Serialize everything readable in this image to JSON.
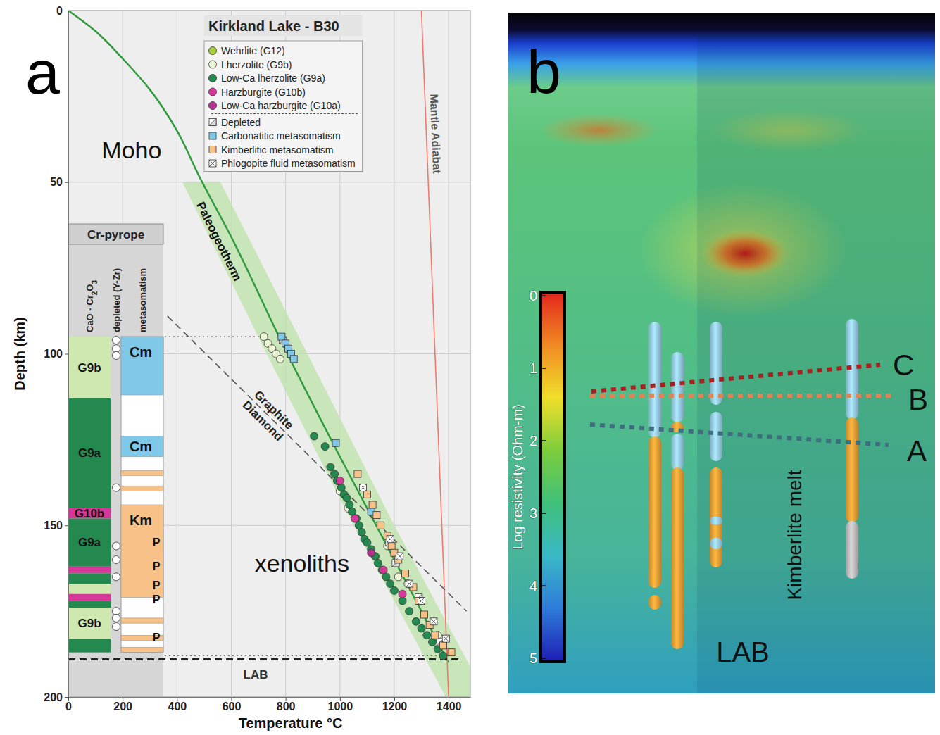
{
  "chart_data": [
    {
      "panel": "a",
      "type": "scatter",
      "title": "Kirkland Lake - B30",
      "x_label": "Temperature °C",
      "y_label": "Depth (km)",
      "xlim": [
        0,
        1480
      ],
      "ylim": [
        0,
        200
      ],
      "xticks": [
        0,
        200,
        400,
        600,
        800,
        1000,
        1200,
        1400
      ],
      "yticks": [
        0,
        50,
        100,
        150,
        200
      ],
      "grid": true,
      "legend": "upper right",
      "series": [
        {
          "name": "Wehrlite (G12)",
          "color": "#a9cc3a",
          "marker": "circle",
          "x": [],
          "values": []
        },
        {
          "name": "Lherzolite (G9b)",
          "color": "#eef6d8",
          "marker": "circle",
          "x": [
            720,
            735,
            750,
            765,
            780,
            1000,
            1030,
            1175,
            1215,
            1250,
            1360
          ],
          "values": [
            95,
            97,
            98.5,
            100,
            101.5,
            140,
            145,
            156,
            165,
            167,
            182
          ]
        },
        {
          "name": "Low-Ca lherzolite (G9a)",
          "color": "#24894f",
          "marker": "circle",
          "x": [
            905,
            945,
            965,
            980,
            990,
            1005,
            1015,
            1025,
            1035,
            1045,
            1060,
            1070,
            1080,
            1090,
            1100,
            1115,
            1130,
            1140,
            1155,
            1170,
            1185,
            1200,
            1230,
            1255,
            1280,
            1300,
            1320,
            1340,
            1360,
            1380
          ],
          "values": [
            124,
            127,
            133,
            135,
            137,
            139,
            141,
            142,
            144,
            146,
            148,
            150,
            152,
            154,
            155,
            157,
            159,
            161,
            163,
            165,
            167,
            169,
            172,
            175,
            178,
            180,
            182,
            184,
            186,
            188
          ]
        },
        {
          "name": "Harzburgite (G10b)",
          "color": "#d6399a",
          "marker": "circle",
          "x": [
            1000,
            1055,
            1160,
            1230
          ],
          "values": [
            137,
            148,
            163,
            170
          ]
        },
        {
          "name": "Low-Ca harzburgite (G10a)",
          "color": "#b23490",
          "marker": "circle",
          "x": [
            1115
          ],
          "values": [
            158
          ]
        },
        {
          "name": "Depleted",
          "color": "#ffffff",
          "marker": "half-square",
          "x": [
            790,
            1180,
            1205,
            1290,
            1370
          ],
          "values": [
            96,
            155,
            161,
            171,
            184
          ]
        },
        {
          "name": "Carbonatitic metasomatism",
          "color": "#7fc8e8",
          "marker": "square",
          "x": [
            785,
            800,
            810,
            820,
            830,
            985,
            1115
          ],
          "values": [
            95,
            97,
            98.5,
            100,
            101.5,
            126,
            146
          ]
        },
        {
          "name": "Kimberlitic metasomatism",
          "color": "#f7c187",
          "marker": "square",
          "x": [
            1065,
            1100,
            1120,
            1135,
            1150,
            1175,
            1190,
            1200,
            1215,
            1240,
            1270,
            1290,
            1310,
            1330,
            1350,
            1380,
            1410
          ],
          "values": [
            135,
            141,
            144,
            147,
            150,
            153,
            156,
            158,
            160,
            164,
            168,
            172,
            176,
            179,
            182,
            185,
            187
          ]
        },
        {
          "name": "Phlogopite fluid metasomatism",
          "color": "#ffffff",
          "marker": "cross-square",
          "x": [
            1085,
            1185,
            1220,
            1255,
            1300,
            1345,
            1390
          ],
          "values": [
            139,
            154,
            159,
            167,
            172,
            178,
            183
          ]
        }
      ],
      "lines": [
        {
          "label": "Paleogeotherm",
          "color": "#2e9a3c",
          "line_style": "solid",
          "x": [
            0,
            100,
            200,
            300,
            400,
            480,
            600,
            800,
            1000,
            1200,
            1400
          ],
          "values": [
            0,
            6,
            14,
            23,
            35,
            48,
            66,
            99,
            130,
            160,
            190
          ]
        },
        {
          "label": "Mantle Adiabat",
          "color": "#f07a6a",
          "line_style": "solid",
          "x": [
            1300,
            1400
          ],
          "values": [
            0,
            200
          ]
        },
        {
          "labels": [
            "Graphite",
            "Diamond"
          ],
          "color": "#555555",
          "line_style": "dashed",
          "x": [
            365,
            1466
          ],
          "values": [
            89,
            175
          ]
        },
        {
          "label": "LAB",
          "color": "#222222",
          "line_style": "dashed",
          "x": [
            0,
            1450
          ],
          "values": [
            189,
            189
          ]
        },
        {
          "color": "#666666",
          "line_style": "dotted",
          "x": [
            355,
            720
          ],
          "values": [
            95,
            95
          ]
        },
        {
          "color": "#666666",
          "line_style": "dotted",
          "x": [
            355,
            1400
          ],
          "values": [
            188,
            188
          ]
        }
      ],
      "band": {
        "color": "#bfe2ad",
        "x_low": [
          420,
          730,
          1050,
          1390
        ],
        "x_high": [
          560,
          880,
          1200,
          1540
        ],
        "values": [
          50,
          100,
          150,
          200
        ]
      },
      "annotations": [
        {
          "text": "Moho",
          "x": 233,
          "y": 40.6
        },
        {
          "text": "xenoliths",
          "x": 860,
          "y": 161
        }
      ],
      "column": {
        "title": "Cr-pyrope",
        "headers": [
          "CaO - Cr2O3",
          "depleted (Y-Zr)",
          "metasomatism"
        ],
        "cao_cr2o3": [
          {
            "label": "G9b",
            "color": "#cfe8b0",
            "top": 95,
            "bottom": 113
          },
          {
            "label": "G9a",
            "color": "#24894f",
            "top": 113,
            "bottom": 145
          },
          {
            "label": "G10b",
            "color": "#d6399a",
            "top": 145,
            "bottom": 148
          },
          {
            "label": "G9a",
            "color": "#24894f",
            "top": 148,
            "bottom": 162
          },
          {
            "color": "#d6399a",
            "top": 162,
            "bottom": 164
          },
          {
            "color": "#24894f",
            "top": 164,
            "bottom": 167
          },
          {
            "color": "#cfe8b0",
            "top": 167,
            "bottom": 170
          },
          {
            "color": "#d6399a",
            "top": 170,
            "bottom": 172
          },
          {
            "color": "#24894f",
            "top": 172,
            "bottom": 174
          },
          {
            "label": "G9b",
            "color": "#cfe8b0",
            "top": 174,
            "bottom": 183
          },
          {
            "color": "#24894f",
            "top": 183,
            "bottom": 187
          }
        ],
        "depleted": [
          96,
          98.5,
          100.5,
          139,
          156,
          160,
          165,
          175,
          177,
          179.5
        ],
        "metasomatism": [
          {
            "label": "Cm",
            "color": "#7fc8e8",
            "top": 95,
            "bottom": 112
          },
          {
            "label": "Cm",
            "color": "#7fc8e8",
            "top": 124,
            "bottom": 130
          },
          {
            "color": "#f7c187",
            "top": 134,
            "bottom": 135.5
          },
          {
            "color": "#f7c187",
            "top": 138.5,
            "bottom": 140
          },
          {
            "label": "Km",
            "color": "#f7c187",
            "top": 144,
            "bottom": 171
          },
          {
            "color": "#f7c187",
            "top": 177,
            "bottom": 178.5
          },
          {
            "color": "#f7c187",
            "top": 182,
            "bottom": 183.5
          },
          {
            "color": "#f7c187",
            "top": 185.5,
            "bottom": 187
          }
        ],
        "p_labels": [
          {
            "text": "P",
            "y": 155
          },
          {
            "text": "P",
            "y": 162
          },
          {
            "text": "P",
            "y": 167.5
          },
          {
            "text": "P",
            "y": 171.5
          },
          {
            "text": "P",
            "y": 182.6
          }
        ]
      }
    },
    {
      "panel": "b",
      "type": "resistivity_model",
      "colorbar": {
        "label": "Log resistivity (Ohm-m)",
        "lim": [
          0,
          5
        ],
        "ticks": [
          0,
          1,
          2,
          3,
          4,
          5
        ],
        "colors": [
          "#e3261c",
          "#f08a24",
          "#f1df2a",
          "#7ccd3c",
          "#3fc07a",
          "#3ab8c8",
          "#2e7ad8",
          "#1e1eb4"
        ]
      },
      "horizons": [
        {
          "label": "C",
          "color": "#a8201f",
          "line_style": "dotted"
        },
        {
          "label": "B",
          "color": "#d9875a",
          "line_style": "dotted"
        },
        {
          "label": "A",
          "color": "#3f6f7e",
          "line_style": "dotted"
        }
      ],
      "annotations": [
        "Kimberlite melt",
        "LAB"
      ]
    }
  ]
}
